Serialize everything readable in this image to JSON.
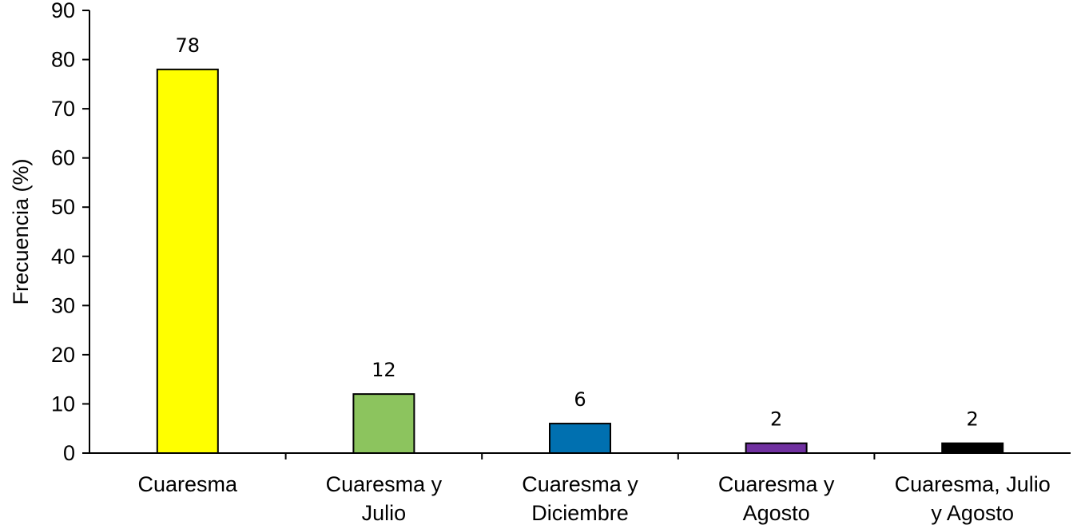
{
  "chart_data": {
    "type": "bar",
    "title": "",
    "xlabel": "",
    "ylabel": "Frecuencia (%)",
    "ylim": [
      0,
      90
    ],
    "yticks": [
      0,
      10,
      20,
      30,
      40,
      50,
      60,
      70,
      80,
      90
    ],
    "grid": false,
    "categories": [
      [
        "Cuaresma"
      ],
      [
        "Cuaresma y",
        "Julio"
      ],
      [
        "Cuaresma y",
        "Diciembre"
      ],
      [
        "Cuaresma y",
        "Agosto"
      ],
      [
        "Cuaresma, Julio",
        "y Agosto"
      ]
    ],
    "values": [
      78,
      12,
      6,
      2,
      2
    ],
    "data_labels": [
      "78",
      "12",
      "6",
      "2",
      "2"
    ],
    "colors": [
      "#FFFF00",
      "#8CC45E",
      "#0070B0",
      "#7030A0",
      "#000000"
    ]
  }
}
